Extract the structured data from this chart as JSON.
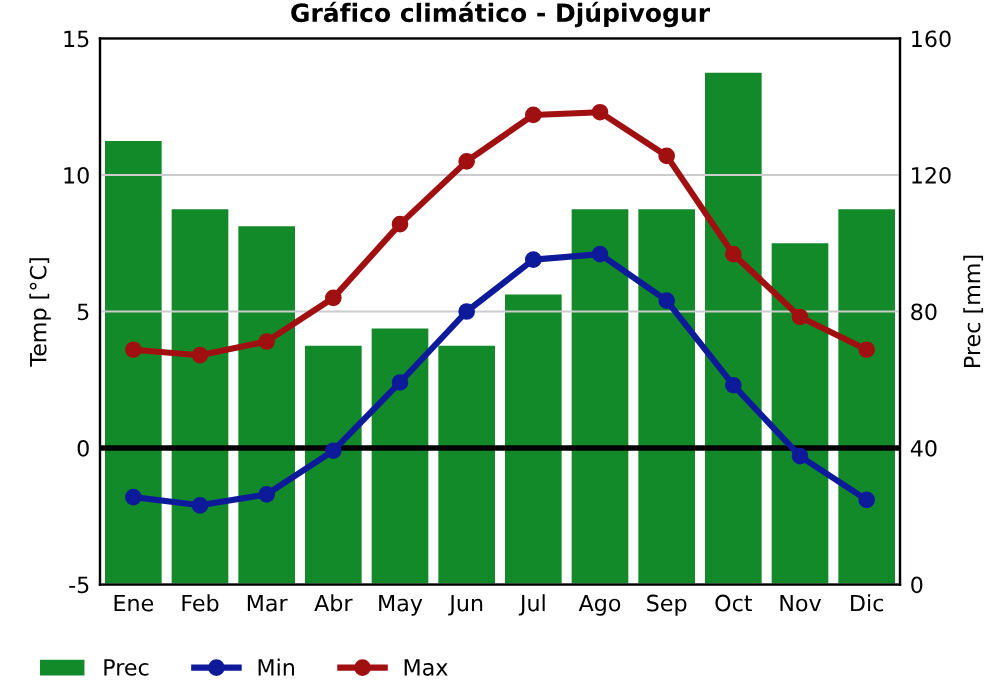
{
  "chart_data": {
    "type": "bar",
    "title": "Gráfico climático - Djúpivogur",
    "ylabel": "Temp [°C]",
    "y2label": "Prec [mm]",
    "categories": [
      "Ene",
      "Feb",
      "Mar",
      "Abr",
      "May",
      "Jun",
      "Jul",
      "Ago",
      "Sep",
      "Oct",
      "Nov",
      "Dic"
    ],
    "series": [
      {
        "name": "Prec",
        "axis": "y2",
        "color": "#138a2a",
        "values": [
          130,
          110,
          105,
          70,
          75,
          70,
          85,
          110,
          110,
          150,
          100,
          110
        ]
      },
      {
        "name": "Min",
        "type": "line",
        "color": "#0d1a99",
        "marker": "circle",
        "values": [
          -1.8,
          -2.1,
          -1.7,
          -0.1,
          2.4,
          5.0,
          6.9,
          7.1,
          5.4,
          2.3,
          -0.3,
          -1.9
        ]
      },
      {
        "name": "Max",
        "type": "line",
        "color": "#a01010",
        "marker": "circle",
        "values": [
          3.6,
          3.4,
          3.9,
          5.5,
          8.2,
          10.5,
          12.2,
          12.3,
          10.7,
          7.1,
          4.8,
          3.6
        ]
      }
    ],
    "ylim": [
      -5,
      15
    ],
    "yticks": [
      -5,
      0,
      5,
      10,
      15
    ],
    "y2lim": [
      0,
      160
    ],
    "y2ticks": [
      0,
      40,
      80,
      120,
      160
    ],
    "ref_lines": [
      {
        "axis": "y",
        "value": 0,
        "color": "#000000"
      }
    ],
    "grid": "y",
    "legend": "bottom"
  }
}
